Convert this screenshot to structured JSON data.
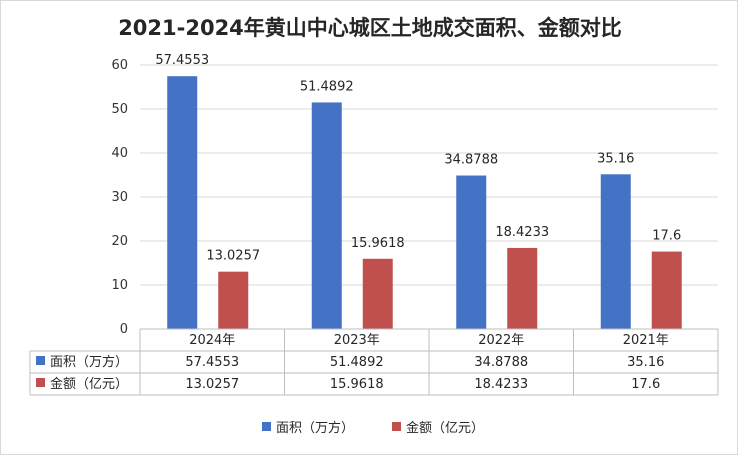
{
  "chart_data": {
    "type": "bar",
    "title": "2021-2024年黄山中心城区土地成交面积、金额对比",
    "categories": [
      "2024年",
      "2023年",
      "2022年",
      "2021年"
    ],
    "series": [
      {
        "name": "面积（万方）",
        "color": "#4472C4",
        "values": [
          57.4553,
          51.4892,
          34.8788,
          35.16
        ],
        "labels": [
          "57.4553",
          "51.4892",
          "34.8788",
          "35.16"
        ]
      },
      {
        "name": "金额（亿元）",
        "color": "#C0504D",
        "values": [
          13.0257,
          15.9618,
          18.4233,
          17.6
        ],
        "labels": [
          "13.0257",
          "15.9618",
          "18.4233",
          "17.6"
        ]
      }
    ],
    "ylim": [
      0,
      60
    ],
    "yticks": [
      0,
      10,
      20,
      30,
      40,
      50,
      60
    ],
    "grid": true,
    "legend": "bottom",
    "data_table": true
  }
}
